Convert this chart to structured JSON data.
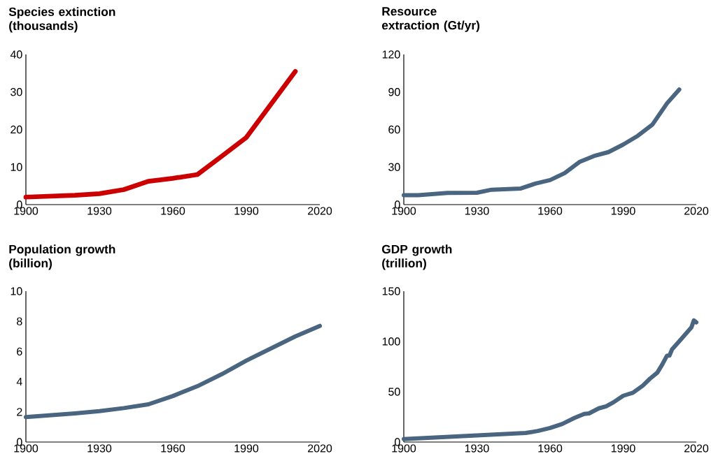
{
  "chart_data": [
    {
      "type": "line",
      "title": "Species extinction (thousands)",
      "color": "#cc0000",
      "xlim": [
        1900,
        2020
      ],
      "xticks": [
        1900,
        1930,
        1960,
        1990,
        2020
      ],
      "ylim": [
        0,
        40
      ],
      "yticks": [
        0,
        10,
        20,
        30,
        40
      ],
      "x": [
        1900,
        1920,
        1930,
        1940,
        1950,
        1960,
        1970,
        1980,
        1990,
        2010
      ],
      "values": [
        2.0,
        2.5,
        2.9,
        4.0,
        6.2,
        7.0,
        8.0,
        12.9,
        17.9,
        35.5
      ]
    },
    {
      "type": "line",
      "title": "Resource extraction (Gt/yr)",
      "color": "#4a6580",
      "xlim": [
        1900,
        2020
      ],
      "xticks": [
        1900,
        1930,
        1960,
        1990,
        2020
      ],
      "ylim": [
        0,
        120
      ],
      "yticks": [
        0,
        30,
        60,
        90,
        120
      ],
      "x": [
        1900,
        1906,
        1918,
        1930,
        1936,
        1948,
        1954,
        1960,
        1966,
        1972,
        1978,
        1984,
        1990,
        1996,
        2002,
        2008,
        2013
      ],
      "values": [
        7.5,
        7.5,
        9.3,
        9.5,
        11.9,
        12.9,
        16.8,
        19.6,
        25.2,
        34,
        38.8,
        42,
        48,
        55,
        64,
        81,
        92
      ]
    },
    {
      "type": "line",
      "title": "Population growth (billion)",
      "color": "#4a6580",
      "xlim": [
        1900,
        2020
      ],
      "xticks": [
        1900,
        1930,
        1960,
        1990,
        2020
      ],
      "ylim": [
        0,
        10
      ],
      "yticks": [
        0,
        2,
        4,
        6,
        8,
        10
      ],
      "x": [
        1900,
        1920,
        1930,
        1940,
        1950,
        1960,
        1970,
        1980,
        1990,
        2000,
        2010,
        2020
      ],
      "values": [
        1.65,
        1.9,
        2.05,
        2.25,
        2.5,
        3.05,
        3.7,
        4.5,
        5.4,
        6.2,
        7.0,
        7.7
      ]
    },
    {
      "type": "line",
      "title": "GDP growth (trillion)",
      "color": "#4a6580",
      "xlim": [
        1900,
        2020
      ],
      "xticks": [
        1900,
        1930,
        1960,
        1990,
        2020
      ],
      "ylim": [
        0,
        150
      ],
      "yticks": [
        0,
        50,
        100,
        150
      ],
      "x": [
        1900,
        1950,
        1955,
        1960,
        1965,
        1970,
        1974,
        1976,
        1980,
        1983,
        1986,
        1990,
        1994,
        1998,
        2001,
        2004,
        2006,
        2008,
        2009,
        2010,
        2014,
        2018,
        2019,
        2020
      ],
      "values": [
        3,
        9,
        11,
        14,
        18,
        24,
        28,
        28.5,
        33.5,
        35.5,
        39.5,
        46,
        49,
        56,
        63,
        69,
        77,
        86,
        86,
        92,
        103,
        114,
        121,
        119
      ]
    }
  ]
}
